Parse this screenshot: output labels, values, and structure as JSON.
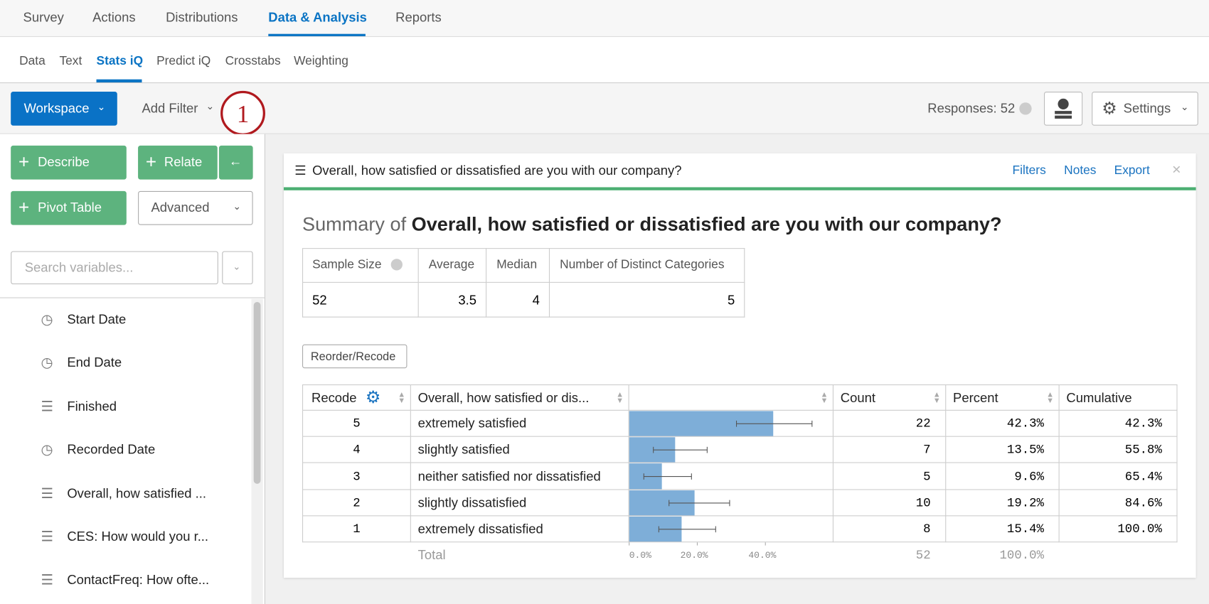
{
  "top_nav": [
    "Survey",
    "Actions",
    "Distributions",
    "Data & Analysis",
    "Reports"
  ],
  "sub_nav": [
    "Data",
    "Text",
    "Stats iQ",
    "Predict iQ",
    "Crosstabs",
    "Weighting"
  ],
  "toolbar": {
    "workspace": "Workspace",
    "add_filter": "Add Filter",
    "step": "1",
    "responses": "Responses: 52",
    "settings": "Settings"
  },
  "sidebar": {
    "buttons": [
      "Describe",
      "Relate",
      "Pivot Table"
    ],
    "advanced": "Advanced",
    "search_placeholder": "Search variables...",
    "variables": [
      "Start Date",
      "End Date",
      "Finished",
      "Recorded Date",
      "Overall, how satisfied ...",
      "CES: How would you r...",
      "ContactFreq: How ofte..."
    ]
  },
  "card": {
    "header": "Overall, how satisfied or dissatisfied are you with our company?",
    "links": [
      "Filters",
      "Notes",
      "Export"
    ],
    "summary_prefix": "Summary of",
    "summary_title": "Overall, how satisfied or dissatisfied are you with our company?",
    "stats": {
      "headers": [
        "Sample Size",
        "Average",
        "Median",
        "Number of Distinct Categories"
      ],
      "values": [
        52,
        3.5,
        4,
        5
      ]
    },
    "reorder": "Reorder/Recode",
    "table": {
      "headers": [
        "Recode",
        "Overall, how satisfied or dis...",
        "Count",
        "Percent",
        "Cumulative"
      ],
      "rows": [
        {
          "recode": 5,
          "label": "extremely satisfied",
          "count": 22,
          "percent": 42.3,
          "percent_label": "42.3%",
          "ci": [
            31.5,
            53.7
          ],
          "cumulative": "42.3%"
        },
        {
          "recode": 4,
          "label": "slightly satisfied",
          "count": 7,
          "percent": 13.5,
          "percent_label": "13.5%",
          "ci": [
            7.1,
            22.9
          ],
          "cumulative": "55.8%"
        },
        {
          "recode": 3,
          "label": "neither satisfied nor dissatisfied",
          "count": 5,
          "percent": 9.6,
          "percent_label": "9.6%",
          "ci": [
            4.3,
            18.3
          ],
          "cumulative": "65.4%"
        },
        {
          "recode": 2,
          "label": "slightly dissatisfied",
          "count": 10,
          "percent": 19.2,
          "percent_label": "19.2%",
          "ci": [
            11.7,
            29.5
          ],
          "cumulative": "84.6%"
        },
        {
          "recode": 1,
          "label": "extremely dissatisfied",
          "count": 8,
          "percent": 15.4,
          "percent_label": "15.4%",
          "ci": [
            8.7,
            25.4
          ],
          "cumulative": "100.0%"
        }
      ],
      "total_label": "Total",
      "total_count": 52,
      "total_percent": "100.0%",
      "bar_color": "#7eaed8",
      "xlim": [
        0,
        60
      ],
      "xticks": [
        {
          "value": 0,
          "label": "0.0%"
        },
        {
          "value": 20,
          "label": "20.0%"
        },
        {
          "value": 40,
          "label": "40.0%"
        }
      ]
    }
  }
}
